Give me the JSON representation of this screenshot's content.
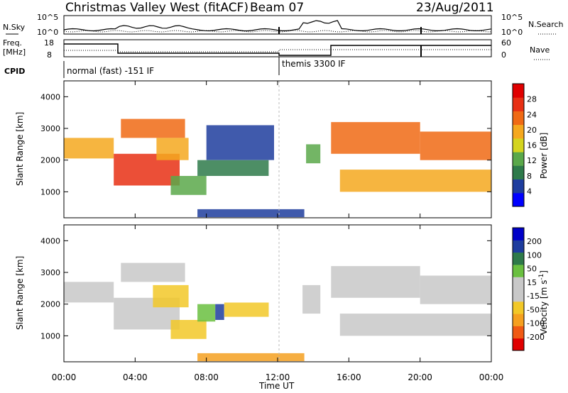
{
  "header": {
    "station": "Christmas Valley West (fitACF)",
    "beam": "Beam 07",
    "date": "23/Aug/2011"
  },
  "noise_panel": {
    "left_label": "N.Sky",
    "right_label": "N.Search",
    "top_tick": "10^5",
    "bottom_tick": "10^0"
  },
  "freq_panel": {
    "left_label_1": "Freq.",
    "left_label_2": "[MHz]",
    "left_top_tick": "18",
    "left_bottom_tick": "8",
    "right_label": "Nave",
    "right_top_tick": "60",
    "right_bottom_tick": "0"
  },
  "cpid": {
    "label": "CPID",
    "modes": [
      {
        "name": "normal (fast) -151 IF",
        "start_hour": 0
      },
      {
        "name": "themis 3300 IF",
        "start_hour": 12
      }
    ]
  },
  "x_axis": {
    "label": "Time UT",
    "ticks": [
      "00:00",
      "04:00",
      "08:00",
      "12:00",
      "16:00",
      "20:00",
      "00:00"
    ]
  },
  "colors": {
    "power": [
      "#0000ff",
      "#1e3d9e",
      "#2e7a4a",
      "#5aa84a",
      "#d4d41e",
      "#f5a81e",
      "#f06a14",
      "#e83014",
      "#e00000"
    ],
    "velocity": [
      "#e00000",
      "#f05a14",
      "#f5a020",
      "#f2c828",
      "#c8c8c8",
      "#c8c8c8",
      "#6ac040",
      "#2e7a4a",
      "#1e3d9e",
      "#0000c8"
    ]
  },
  "chart_data": [
    {
      "type": "heatmap",
      "title": "Power",
      "xlabel": "",
      "ylabel": "Slant Range [km]",
      "xlim": [
        0,
        24
      ],
      "ylim": [
        180,
        4500
      ],
      "yticks": [
        "1000",
        "2000",
        "3000",
        "4000"
      ],
      "colorbar": {
        "label": "Power [dB]",
        "ticks": [
          "4",
          "8",
          "12",
          "16",
          "20",
          "24",
          "28"
        ],
        "range": [
          0,
          32
        ]
      },
      "grid": false,
      "regions": [
        {
          "x0": 0.0,
          "x1": 2.8,
          "y0": 2050,
          "y1": 2700,
          "value": 21
        },
        {
          "x0": 2.8,
          "x1": 6.5,
          "y0": 1200,
          "y1": 2200,
          "value": 28
        },
        {
          "x0": 3.2,
          "x1": 6.8,
          "y0": 2700,
          "y1": 3300,
          "value": 24
        },
        {
          "x0": 5.2,
          "x1": 7.0,
          "y0": 2000,
          "y1": 2700,
          "value": 20
        },
        {
          "x0": 6.0,
          "x1": 8.0,
          "y0": 900,
          "y1": 1500,
          "value": 12
        },
        {
          "x0": 7.5,
          "x1": 11.5,
          "y0": 1500,
          "y1": 2000,
          "value": 10
        },
        {
          "x0": 8.0,
          "x1": 11.8,
          "y0": 2000,
          "y1": 3100,
          "value": 5
        },
        {
          "x0": 13.6,
          "x1": 14.4,
          "y0": 1900,
          "y1": 2500,
          "value": 14
        },
        {
          "x0": 15.0,
          "x1": 20.0,
          "y0": 2200,
          "y1": 3200,
          "value": 24
        },
        {
          "x0": 15.5,
          "x1": 24.0,
          "y0": 1000,
          "y1": 1700,
          "value": 18
        },
        {
          "x0": 20.0,
          "x1": 24.0,
          "y0": 2000,
          "y1": 2900,
          "value": 24
        },
        {
          "x0": 7.5,
          "x1": 13.5,
          "y0": 200,
          "y1": 450,
          "value": 4
        }
      ]
    },
    {
      "type": "heatmap",
      "title": "Velocity",
      "xlabel": "Time UT",
      "ylabel": "Slant Range [km]",
      "xlim": [
        0,
        24
      ],
      "ylim": [
        180,
        4500
      ],
      "yticks": [
        "1000",
        "2000",
        "3000",
        "4000"
      ],
      "colorbar": {
        "label": "Velocity [m s^-1]",
        "ticks": [
          "200",
          "100",
          "50",
          "15",
          "-15",
          "-50",
          "-100",
          "-200"
        ],
        "range": [
          -250,
          250
        ]
      },
      "grid": false,
      "regions": [
        {
          "x0": 0.0,
          "x1": 2.8,
          "y0": 2050,
          "y1": 2700,
          "value": 0
        },
        {
          "x0": 2.8,
          "x1": 6.5,
          "y0": 1200,
          "y1": 2200,
          "value": 0
        },
        {
          "x0": 3.2,
          "x1": 6.8,
          "y0": 2700,
          "y1": 3300,
          "value": -30
        },
        {
          "x0": 5.0,
          "x1": 7.0,
          "y0": 1900,
          "y1": 2600,
          "value": -60
        },
        {
          "x0": 6.0,
          "x1": 8.0,
          "y0": 900,
          "y1": 1500,
          "value": -70
        },
        {
          "x0": 7.5,
          "x1": 8.5,
          "y0": 1450,
          "y1": 2000,
          "value": 60
        },
        {
          "x0": 8.5,
          "x1": 9.0,
          "y0": 1500,
          "y1": 2000,
          "value": 150
        },
        {
          "x0": 9.0,
          "x1": 11.5,
          "y0": 1600,
          "y1": 2050,
          "value": -60
        },
        {
          "x0": 13.4,
          "x1": 14.4,
          "y0": 1700,
          "y1": 2600,
          "value": 0
        },
        {
          "x0": 15.0,
          "x1": 20.0,
          "y0": 2200,
          "y1": 3200,
          "value": 0
        },
        {
          "x0": 15.5,
          "x1": 24.0,
          "y0": 1000,
          "y1": 1700,
          "value": 0
        },
        {
          "x0": 20.0,
          "x1": 24.0,
          "y0": 2000,
          "y1": 2900,
          "value": 0
        },
        {
          "x0": 7.5,
          "x1": 13.5,
          "y0": 200,
          "y1": 450,
          "value": -120
        }
      ]
    }
  ]
}
